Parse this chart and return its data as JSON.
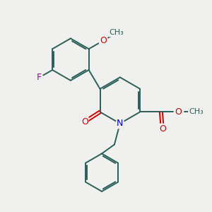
{
  "background_color": "#f0f0ee",
  "bond_color": "#2a5f5a",
  "atom_colors": {
    "O": "#cc0000",
    "N": "#0000cc",
    "F": "#aa00aa",
    "C": "#2a5f5a"
  },
  "figsize": [
    3.0,
    3.0
  ],
  "dpi": 100,
  "lw": 1.4
}
